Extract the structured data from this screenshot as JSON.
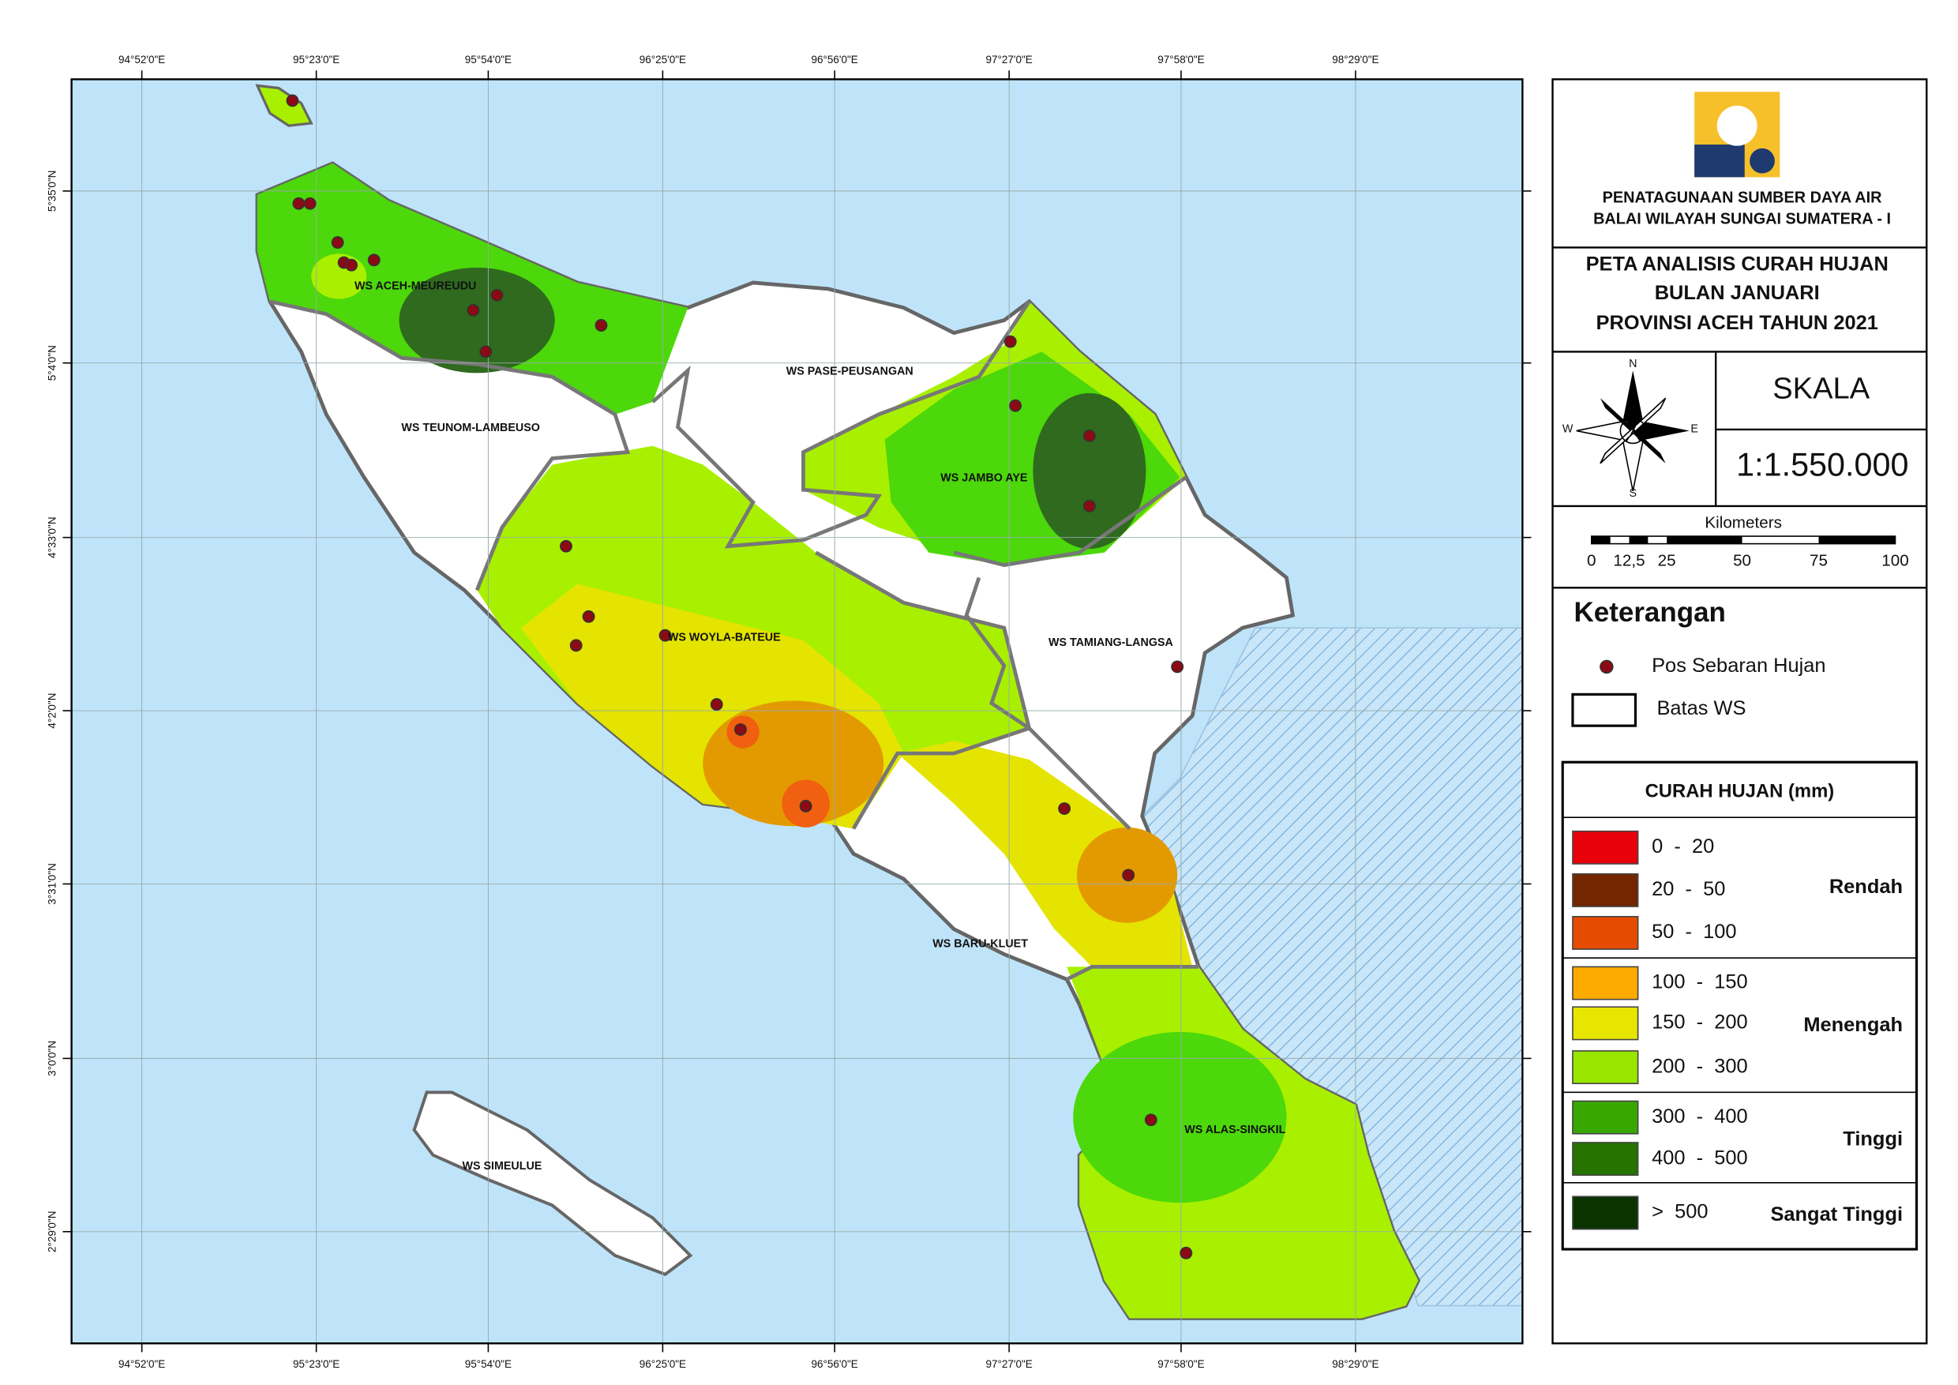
{
  "header": {
    "agency_line1": "PENATAGUNAAN SUMBER DAYA AIR",
    "agency_line2": "BALAI WILAYAH SUNGAI SUMATERA - I"
  },
  "title": [
    "PETA ANALISIS CURAH HUJAN",
    "BULAN JANUARI",
    "PROVINSI ACEH TAHUN 2021"
  ],
  "compass": {
    "n": "N",
    "s": "S",
    "e": "E",
    "w": "W"
  },
  "scale": {
    "label": "SKALA",
    "value": "1:1.550.000"
  },
  "scale_bar": {
    "unit": "Kilometers",
    "ticks": [
      "0",
      "12,5",
      "25",
      "50",
      "75",
      "100"
    ]
  },
  "legend": {
    "title": "Keterangan",
    "items": [
      {
        "label": "Pos Sebaran Hujan"
      },
      {
        "label": "Batas WS"
      }
    ]
  },
  "rainfall_legend": {
    "title": "CURAH HUJAN (mm)",
    "groups": [
      {
        "name": "Rendah",
        "classes": [
          {
            "label": "0  -  20",
            "color": "#e8000b"
          },
          {
            "label": "20  -  50",
            "color": "#732600"
          },
          {
            "label": "50  -  100",
            "color": "#e64c00"
          }
        ]
      },
      {
        "name": "Menengah",
        "classes": [
          {
            "label": "100  -  150",
            "color": "#ffaa00"
          },
          {
            "label": "150  -  200",
            "color": "#e6e600"
          },
          {
            "label": "200  -  300",
            "color": "#98e600"
          }
        ]
      },
      {
        "name": "Tinggi",
        "classes": [
          {
            "label": "300  -  400",
            "color": "#38a800"
          },
          {
            "label": "400  -  500",
            "color": "#267300"
          }
        ]
      },
      {
        "name": "Sangat Tinggi",
        "classes": [
          {
            "label": ">  500",
            "color": "#0a3300"
          }
        ]
      }
    ]
  },
  "map": {
    "x_labels": [
      "94°52'0\"E",
      "95°23'0\"E",
      "95°54'0\"E",
      "96°25'0\"E",
      "96°56'0\"E",
      "97°27'0\"E",
      "97°58'0\"E",
      "98°29'0\"E"
    ],
    "y_labels": [
      "5°35'0\"N",
      "5°4'0\"N",
      "4°33'0\"N",
      "4°2'0\"N",
      "3°31'0\"N",
      "3°0'0\"N",
      "2°29'0\"N"
    ],
    "regions": [
      {
        "label": "WS ACEH-MEUREUDU"
      },
      {
        "label": "WS PASE-PEUSANGAN"
      },
      {
        "label": "WS TEUNOM-LAMBEUSO"
      },
      {
        "label": "WS JAMBO AYE"
      },
      {
        "label": "WS WOYLA-BATEUE"
      },
      {
        "label": "WS TAMIANG-LANGSA"
      },
      {
        "label": "WS BARU-KLUET"
      },
      {
        "label": "WS ALAS-SINGKIL"
      },
      {
        "label": "WS SIMEULUE"
      }
    ]
  }
}
